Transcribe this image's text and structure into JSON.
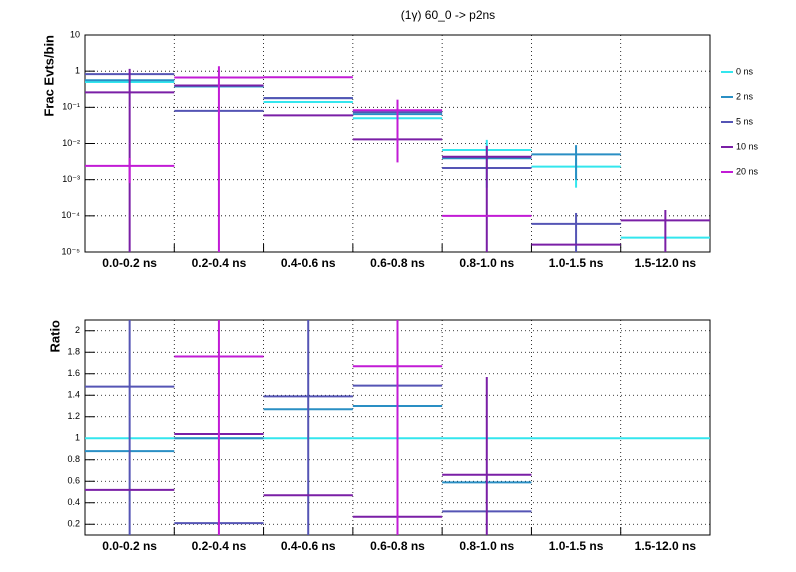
{
  "chart_data": [
    {
      "type": "step",
      "title": "(1γ) 60_0 -> p2ns",
      "y_label": "Frac Evts/bin",
      "log": true,
      "grid": true,
      "legend": "right",
      "categories": [
        "0.0-0.2 ns",
        "0.2-0.4 ns",
        "0.4-0.6 ns",
        "0.6-0.8 ns",
        "0.8-1.0 ns",
        "1.0-1.5 ns",
        "1.5-12.0 ns"
      ],
      "ylim": [
        1e-05,
        10
      ],
      "yticks": [
        {
          "value": 1e-05,
          "label": "10⁻⁵"
        },
        {
          "value": 0.0001,
          "label": "10⁻⁴"
        },
        {
          "value": 0.001,
          "label": "10⁻³"
        },
        {
          "value": 0.01,
          "label": "10⁻²"
        },
        {
          "value": 0.1,
          "label": "10⁻¹"
        },
        1,
        10
      ],
      "series": [
        {
          "name": "0 ns",
          "color": "#33e6ee",
          "values": [
            0.5,
            0.38,
            0.14,
            0.05,
            0.0066,
            0.0023,
            2.5e-05
          ],
          "errors": [
            null,
            null,
            null,
            null,
            0.006,
            0.0017,
            null
          ]
        },
        {
          "name": "2 ns",
          "color": "#2a8fc4",
          "values": [
            0.56,
            0.38,
            0.18,
            0.065,
            0.0039,
            0.005,
            null
          ],
          "errors": [
            null,
            null,
            null,
            null,
            null,
            0.004,
            null
          ]
        },
        {
          "name": "5 ns",
          "color": "#5555b5",
          "values": [
            0.83,
            0.08,
            0.18,
            0.074,
            0.0021,
            6e-05,
            null
          ],
          "errors": [
            null,
            null,
            null,
            null,
            null,
            6e-05,
            null
          ]
        },
        {
          "name": "10 ns",
          "color": "#7a1fa6",
          "values": [
            0.26,
            0.4,
            0.06,
            0.013,
            0.0043,
            1.6e-05,
            7.5e-05
          ],
          "errors": [
            0.9,
            null,
            null,
            null,
            0.0043,
            null,
            7e-05
          ]
        },
        {
          "name": "20 ns",
          "color": "#c21bd6",
          "values": [
            0.0024,
            0.67,
            0.68,
            0.083,
            0.0001,
            null,
            null
          ],
          "errors": [
            0.0016,
            0.7,
            null,
            0.08,
            null,
            null,
            null
          ]
        }
      ]
    },
    {
      "type": "step",
      "y_label": "Ratio",
      "grid": true,
      "categories": [
        "0.0-0.2 ns",
        "0.2-0.4 ns",
        "0.4-0.6 ns",
        "0.6-0.8 ns",
        "0.8-1.0 ns",
        "1.0-1.5 ns",
        "1.5-12.0 ns"
      ],
      "ylim": [
        0.1,
        2.1
      ],
      "yticks": [
        0.2,
        0.4,
        0.6,
        0.8,
        1,
        1.2,
        1.4,
        1.6,
        1.8,
        2
      ],
      "series": [
        {
          "color": "#33e6ee",
          "values": [
            1,
            1,
            1,
            1,
            1,
            1,
            1
          ]
        },
        {
          "color": "#2a8fc4",
          "values": [
            0.88,
            1.0,
            1.27,
            1.3,
            0.59,
            null,
            null
          ]
        },
        {
          "color": "#5555b5",
          "values": [
            1.48,
            0.21,
            1.39,
            1.49,
            0.32,
            null,
            null
          ],
          "errors": [
            1.5,
            null,
            1.5,
            null,
            null,
            null,
            null
          ]
        },
        {
          "color": "#7a1fa6",
          "values": [
            0.52,
            1.04,
            0.47,
            0.27,
            0.66,
            null,
            null
          ],
          "errors": [
            null,
            null,
            null,
            null,
            0.91,
            null,
            null
          ]
        },
        {
          "color": "#c21bd6",
          "values": [
            null,
            1.76,
            null,
            1.67,
            null,
            null,
            null
          ],
          "errors": [
            null,
            1.7,
            null,
            1.6,
            null,
            null,
            null
          ]
        }
      ]
    }
  ]
}
